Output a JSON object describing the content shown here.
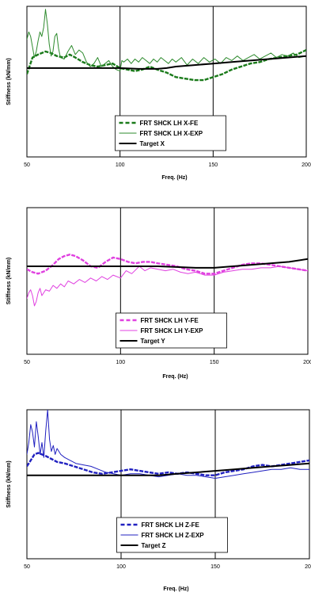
{
  "chart_data": [
    {
      "type": "line",
      "xlabel": "Freq. (Hz)",
      "ylabel": "Stiffness (kN/mm)",
      "xlim": [
        50,
        200
      ],
      "ylim": [
        0,
        1
      ],
      "x_ticks": [
        "50",
        "100",
        "150",
        "200"
      ],
      "grid": "vertical lines at 100 and 150",
      "legend_position": "bottom-center",
      "series": [
        {
          "name": "FRT SHCK LH X-FE",
          "color": "#1a7a1a",
          "style": "dashed",
          "x": [
            50,
            53,
            56,
            60,
            63,
            66,
            70,
            73,
            76,
            80,
            84,
            88,
            92,
            96,
            100,
            104,
            108,
            112,
            116,
            120,
            125,
            130,
            135,
            140,
            145,
            150,
            155,
            160,
            165,
            170,
            175,
            180,
            185,
            190,
            195,
            200
          ],
          "y": [
            0.55,
            0.66,
            0.68,
            0.7,
            0.69,
            0.67,
            0.66,
            0.68,
            0.66,
            0.63,
            0.61,
            0.6,
            0.61,
            0.62,
            0.59,
            0.58,
            0.57,
            0.58,
            0.6,
            0.58,
            0.56,
            0.53,
            0.52,
            0.51,
            0.51,
            0.53,
            0.55,
            0.58,
            0.6,
            0.62,
            0.63,
            0.65,
            0.66,
            0.67,
            0.68,
            0.71
          ]
        },
        {
          "name": "FRT SHCK LH X-EXP",
          "color": "#2e8b2e",
          "style": "solid",
          "x": [
            50,
            51,
            52,
            53,
            54,
            55,
            56,
            57,
            58,
            59,
            60,
            61,
            62,
            63,
            64,
            65,
            66,
            67,
            68,
            70,
            72,
            74,
            76,
            78,
            80,
            82,
            84,
            86,
            88,
            90,
            92,
            94,
            96,
            98,
            100,
            101,
            102,
            104,
            106,
            108,
            110,
            112,
            114,
            116,
            118,
            120,
            122,
            124,
            126,
            128,
            130,
            133,
            136,
            139,
            142,
            145,
            148,
            151,
            154,
            157,
            160,
            163,
            166,
            169,
            172,
            175,
            178,
            181,
            184,
            187,
            190,
            193,
            196,
            200
          ],
          "y": [
            0.78,
            0.83,
            0.8,
            0.73,
            0.66,
            0.7,
            0.77,
            0.83,
            0.8,
            0.86,
            0.98,
            0.88,
            0.75,
            0.67,
            0.7,
            0.8,
            0.82,
            0.72,
            0.66,
            0.65,
            0.7,
            0.74,
            0.68,
            0.71,
            0.69,
            0.63,
            0.6,
            0.62,
            0.66,
            0.6,
            0.62,
            0.64,
            0.6,
            0.58,
            0.57,
            0.64,
            0.63,
            0.65,
            0.62,
            0.65,
            0.63,
            0.66,
            0.64,
            0.62,
            0.65,
            0.63,
            0.66,
            0.64,
            0.62,
            0.65,
            0.63,
            0.66,
            0.61,
            0.65,
            0.62,
            0.66,
            0.63,
            0.65,
            0.62,
            0.66,
            0.64,
            0.67,
            0.64,
            0.66,
            0.68,
            0.65,
            0.67,
            0.69,
            0.66,
            0.68,
            0.67,
            0.69,
            0.66,
            0.67
          ]
        },
        {
          "name": "Target X",
          "color": "#000000",
          "style": "solid",
          "x": [
            50,
            60,
            70,
            80,
            90,
            100,
            110,
            120,
            125,
            130,
            140,
            150,
            160,
            170,
            180,
            190,
            200
          ],
          "y": [
            0.59,
            0.59,
            0.59,
            0.59,
            0.59,
            0.59,
            0.585,
            0.585,
            0.59,
            0.6,
            0.61,
            0.62,
            0.63,
            0.64,
            0.65,
            0.66,
            0.67
          ]
        }
      ]
    },
    {
      "type": "line",
      "xlabel": "Freq. (Hz)",
      "ylabel": "Stiffness (kN/mm)",
      "xlim": [
        50,
        200
      ],
      "ylim": [
        0,
        1
      ],
      "x_ticks": [
        "50",
        "100",
        "150",
        "200"
      ],
      "grid": "vertical lines at 100 and 150",
      "legend_position": "bottom-center",
      "series": [
        {
          "name": "FRT SHCK LH Y-FE",
          "color": "#e040e0",
          "style": "dashed",
          "x": [
            50,
            53,
            56,
            60,
            64,
            67,
            70,
            73,
            76,
            80,
            84,
            88,
            92,
            96,
            100,
            104,
            108,
            112,
            116,
            120,
            125,
            130,
            135,
            140,
            145,
            150,
            155,
            160,
            165,
            170,
            175,
            180,
            185,
            190,
            195,
            200
          ],
          "y": [
            0.58,
            0.56,
            0.55,
            0.57,
            0.61,
            0.65,
            0.67,
            0.68,
            0.67,
            0.64,
            0.6,
            0.59,
            0.63,
            0.66,
            0.65,
            0.63,
            0.62,
            0.63,
            0.63,
            0.62,
            0.61,
            0.6,
            0.58,
            0.57,
            0.55,
            0.55,
            0.57,
            0.59,
            0.61,
            0.62,
            0.62,
            0.61,
            0.6,
            0.59,
            0.58,
            0.57
          ]
        },
        {
          "name": "FRT SHCK LH Y-EXP",
          "color": "#e040e0",
          "style": "solid",
          "x": [
            50,
            51,
            52,
            53,
            54,
            55,
            56,
            57,
            58,
            60,
            62,
            64,
            66,
            68,
            70,
            72,
            75,
            78,
            81,
            84,
            87,
            90,
            93,
            96,
            100,
            103,
            106,
            110,
            113,
            116,
            120,
            124,
            128,
            132,
            136,
            140,
            145,
            150,
            155,
            160,
            165,
            170,
            175,
            180,
            185,
            190,
            195,
            200
          ],
          "y": [
            0.38,
            0.42,
            0.44,
            0.4,
            0.33,
            0.36,
            0.42,
            0.45,
            0.4,
            0.44,
            0.43,
            0.47,
            0.45,
            0.48,
            0.46,
            0.5,
            0.48,
            0.51,
            0.49,
            0.52,
            0.5,
            0.53,
            0.51,
            0.54,
            0.52,
            0.57,
            0.55,
            0.6,
            0.57,
            0.59,
            0.58,
            0.57,
            0.58,
            0.56,
            0.55,
            0.56,
            0.54,
            0.54,
            0.56,
            0.57,
            0.58,
            0.58,
            0.59,
            0.59,
            0.6,
            0.59,
            0.58,
            0.57
          ]
        },
        {
          "name": "Target Y",
          "color": "#000000",
          "style": "solid",
          "x": [
            50,
            60,
            70,
            80,
            90,
            100,
            110,
            120,
            130,
            140,
            150,
            160,
            170,
            180,
            190,
            200
          ],
          "y": [
            0.6,
            0.6,
            0.6,
            0.6,
            0.6,
            0.6,
            0.6,
            0.6,
            0.595,
            0.59,
            0.59,
            0.6,
            0.61,
            0.62,
            0.63,
            0.65
          ]
        }
      ]
    },
    {
      "type": "line",
      "xlabel": "Freq. (Hz)",
      "ylabel": "Stiffness (kN/mm)",
      "xlim": [
        50,
        200
      ],
      "ylim": [
        0,
        1
      ],
      "x_ticks": [
        "50",
        "100",
        "150",
        "200"
      ],
      "grid": "vertical lines at 100 and 150",
      "legend_position": "bottom-center",
      "series": [
        {
          "name": "FRT SHCK LH Z-FE",
          "color": "#2020c0",
          "style": "dashed",
          "x": [
            50,
            52,
            54,
            56,
            58,
            60,
            63,
            66,
            70,
            75,
            80,
            85,
            90,
            95,
            100,
            105,
            110,
            115,
            120,
            125,
            130,
            135,
            140,
            145,
            150,
            155,
            160,
            165,
            170,
            175,
            180,
            185,
            190,
            195,
            200
          ],
          "y": [
            0.62,
            0.66,
            0.7,
            0.71,
            0.7,
            0.69,
            0.67,
            0.65,
            0.64,
            0.62,
            0.6,
            0.58,
            0.57,
            0.58,
            0.59,
            0.6,
            0.59,
            0.58,
            0.57,
            0.58,
            0.57,
            0.58,
            0.57,
            0.56,
            0.56,
            0.58,
            0.59,
            0.6,
            0.62,
            0.63,
            0.62,
            0.63,
            0.64,
            0.65,
            0.66
          ]
        },
        {
          "name": "FRT SHCK LH Z-EXP",
          "color": "#2020c0",
          "style": "solid",
          "x": [
            50,
            51,
            52,
            53,
            54,
            55,
            56,
            57,
            58,
            59,
            60,
            61,
            62,
            63,
            64,
            65,
            66,
            68,
            70,
            73,
            76,
            80,
            84,
            88,
            92,
            96,
            100,
            105,
            110,
            115,
            120,
            125,
            130,
            135,
            140,
            145,
            150,
            155,
            160,
            165,
            170,
            175,
            180,
            185,
            190,
            195,
            200
          ],
          "y": [
            0.7,
            0.78,
            0.9,
            0.85,
            0.75,
            0.92,
            0.82,
            0.7,
            0.78,
            0.68,
            0.86,
            1.0,
            0.8,
            0.72,
            0.76,
            0.7,
            0.74,
            0.7,
            0.68,
            0.66,
            0.64,
            0.63,
            0.62,
            0.6,
            0.58,
            0.57,
            0.56,
            0.57,
            0.57,
            0.56,
            0.55,
            0.56,
            0.57,
            0.56,
            0.56,
            0.55,
            0.54,
            0.55,
            0.56,
            0.57,
            0.58,
            0.59,
            0.6,
            0.6,
            0.61,
            0.6,
            0.6
          ]
        },
        {
          "name": "Target Z",
          "color": "#000000",
          "style": "solid",
          "x": [
            50,
            60,
            70,
            80,
            90,
            100,
            110,
            120,
            130,
            140,
            150,
            160,
            170,
            180,
            190,
            200
          ],
          "y": [
            0.56,
            0.56,
            0.56,
            0.56,
            0.56,
            0.56,
            0.56,
            0.56,
            0.57,
            0.58,
            0.59,
            0.6,
            0.61,
            0.62,
            0.63,
            0.64
          ]
        }
      ]
    }
  ]
}
